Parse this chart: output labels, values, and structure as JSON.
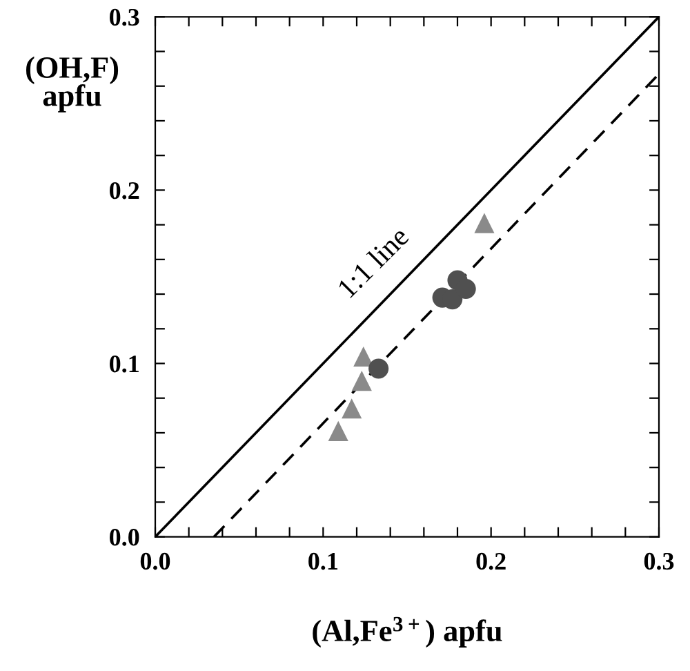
{
  "chart_data": {
    "type": "scatter",
    "xlabel": "(Al,Fe$^{3+}$) apfu",
    "ylabel": "(OH,F)\napfu",
    "xlim": [
      0.0,
      0.3
    ],
    "ylim": [
      0.0,
      0.3
    ],
    "xticks": [
      {
        "value": 0.0,
        "label": "0.0"
      },
      {
        "value": 0.02,
        "label": null
      },
      {
        "value": 0.04,
        "label": null
      },
      {
        "value": 0.06,
        "label": null
      },
      {
        "value": 0.08,
        "label": null
      },
      0.1,
      {
        "value": 0.12,
        "label": null
      },
      {
        "value": 0.14,
        "label": null
      },
      {
        "value": 0.16,
        "label": null
      },
      {
        "value": 0.18,
        "label": null
      },
      0.2,
      {
        "value": 0.22,
        "label": null
      },
      {
        "value": 0.24,
        "label": null
      },
      {
        "value": 0.26,
        "label": null
      },
      {
        "value": 0.28,
        "label": null
      },
      0.3
    ],
    "yticks": [
      {
        "value": 0.0,
        "label": "0.0"
      },
      {
        "value": 0.02,
        "label": null
      },
      {
        "value": 0.04,
        "label": null
      },
      {
        "value": 0.06,
        "label": null
      },
      {
        "value": 0.08,
        "label": null
      },
      0.1,
      {
        "value": 0.12,
        "label": null
      },
      {
        "value": 0.14,
        "label": null
      },
      {
        "value": 0.16,
        "label": null
      },
      {
        "value": 0.18,
        "label": null
      },
      0.2,
      {
        "value": 0.22,
        "label": null
      },
      {
        "value": 0.24,
        "label": null
      },
      {
        "value": 0.26,
        "label": null
      },
      {
        "value": 0.28,
        "label": null
      },
      0.3
    ],
    "grid": false,
    "legend": false,
    "annotations": [
      {
        "text": "1:1 line",
        "x": 0.143,
        "y": 0.143
      }
    ],
    "series": [
      {
        "type": "line",
        "color": "#000000",
        "line_style": "solid",
        "marker": "none",
        "x": [
          0.0,
          0.3
        ],
        "values": [
          0.0,
          0.3
        ]
      },
      {
        "type": "line",
        "color": "#000000",
        "line_style": "dashed",
        "marker": "none",
        "x": [
          0.035,
          0.3
        ],
        "values": [
          0.0,
          0.267
        ]
      },
      {
        "color": "#8a8a8a",
        "marker": "triangle",
        "x": [
          0.196,
          0.124,
          0.123,
          0.117,
          0.109
        ],
        "values": [
          0.181,
          0.104,
          0.09,
          0.074,
          0.061
        ]
      },
      {
        "color": "#505050",
        "marker": "circle",
        "x": [
          0.133,
          0.171,
          0.177,
          0.18,
          0.185
        ],
        "values": [
          0.097,
          0.138,
          0.137,
          0.148,
          0.143
        ]
      }
    ]
  }
}
